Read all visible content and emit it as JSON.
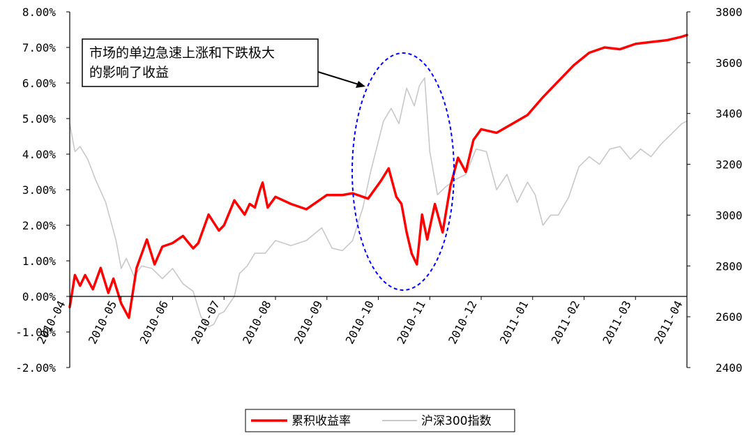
{
  "chart_data": {
    "type": "line",
    "title": "",
    "x_labels": [
      "2010-04",
      "2010-05",
      "2010-06",
      "2010-07",
      "2010-08",
      "2010-09",
      "2010-10",
      "2010-11",
      "2010-12",
      "2011-01",
      "2011-02",
      "2011-03",
      "2011-04"
    ],
    "left_axis": {
      "ticks": [
        "8.00%",
        "7.00%",
        "6.00%",
        "5.00%",
        "4.00%",
        "3.00%",
        "2.00%",
        "1.00%",
        "0.00%",
        "-1.00%",
        "-2.00%"
      ],
      "ylim": [
        -2,
        8
      ]
    },
    "right_axis": {
      "ticks": [
        "3800",
        "3600",
        "3400",
        "3200",
        "3000",
        "2800",
        "2600",
        "2400"
      ],
      "ylim": [
        2400,
        3800
      ]
    },
    "series": [
      {
        "name": "累积收益率",
        "axis": "left",
        "color": "#ff0000",
        "x": [
          0,
          0.1,
          0.2,
          0.3,
          0.45,
          0.6,
          0.75,
          0.85,
          1.0,
          1.15,
          1.3,
          1.5,
          1.65,
          1.8,
          2.0,
          2.2,
          2.4,
          2.5,
          2.7,
          2.9,
          3.0,
          3.2,
          3.4,
          3.5,
          3.6,
          3.7,
          3.75,
          3.85,
          4.0,
          4.3,
          4.6,
          5.0,
          5.3,
          5.5,
          5.8,
          6.05,
          6.2,
          6.35,
          6.45,
          6.55,
          6.65,
          6.75,
          6.85,
          6.95,
          7.1,
          7.25,
          7.4,
          7.55,
          7.7,
          7.85,
          8.0,
          8.3,
          8.6,
          8.9,
          9.2,
          9.5,
          9.8,
          10.1,
          10.4,
          10.7,
          11.0,
          11.3,
          11.6,
          11.9,
          12.0
        ],
        "values": [
          -0.3,
          0.6,
          0.3,
          0.6,
          0.2,
          0.8,
          0.1,
          0.5,
          -0.2,
          -0.6,
          0.8,
          1.6,
          0.9,
          1.4,
          1.5,
          1.7,
          1.35,
          1.5,
          2.3,
          1.85,
          2.0,
          2.7,
          2.3,
          2.6,
          2.5,
          3.0,
          3.2,
          2.5,
          2.8,
          2.6,
          2.45,
          2.85,
          2.85,
          2.9,
          2.75,
          3.25,
          3.6,
          2.8,
          2.6,
          1.8,
          1.2,
          0.9,
          2.3,
          1.6,
          2.6,
          1.8,
          3.1,
          3.9,
          3.5,
          4.4,
          4.7,
          4.6,
          4.85,
          5.1,
          5.6,
          6.05,
          6.5,
          6.85,
          7.0,
          6.95,
          7.1,
          7.15,
          7.2,
          7.3,
          7.35
        ]
      },
      {
        "name": "沪深300指数",
        "axis": "right",
        "color": "#c8c8c8",
        "x": [
          0,
          0.1,
          0.2,
          0.35,
          0.5,
          0.7,
          0.9,
          1.0,
          1.1,
          1.25,
          1.4,
          1.6,
          1.8,
          2.0,
          2.2,
          2.4,
          2.55,
          2.7,
          2.8,
          2.9,
          3.0,
          3.1,
          3.2,
          3.3,
          3.45,
          3.6,
          3.8,
          4.0,
          4.3,
          4.6,
          4.9,
          5.1,
          5.3,
          5.5,
          5.7,
          5.85,
          6.0,
          6.1,
          6.25,
          6.4,
          6.55,
          6.7,
          6.8,
          6.9,
          7.0,
          7.15,
          7.3,
          7.5,
          7.7,
          7.9,
          8.1,
          8.3,
          8.5,
          8.7,
          8.9,
          9.05,
          9.2,
          9.35,
          9.5,
          9.7,
          9.9,
          10.1,
          10.3,
          10.5,
          10.7,
          10.9,
          11.1,
          11.3,
          11.5,
          11.7,
          11.9,
          12.0
        ],
        "values": [
          3360,
          3250,
          3270,
          3220,
          3140,
          3050,
          2900,
          2790,
          2830,
          2760,
          2800,
          2790,
          2750,
          2790,
          2730,
          2700,
          2600,
          2560,
          2570,
          2610,
          2620,
          2650,
          2680,
          2770,
          2800,
          2850,
          2850,
          2900,
          2880,
          2900,
          2950,
          2870,
          2860,
          2900,
          3030,
          3170,
          3290,
          3370,
          3420,
          3360,
          3500,
          3430,
          3510,
          3540,
          3250,
          3080,
          3110,
          3140,
          3160,
          3260,
          3250,
          3100,
          3160,
          3050,
          3130,
          3080,
          2960,
          3000,
          3000,
          3070,
          3190,
          3230,
          3200,
          3260,
          3270,
          3220,
          3260,
          3230,
          3280,
          3320,
          3360,
          3370
        ]
      }
    ],
    "annotation": {
      "text_line1": "市场的单边急速上涨和下跌极大",
      "text_line2": "的影响了收益"
    },
    "legend": {
      "position": "bottom-center",
      "entries": [
        "累积收益率",
        "沪深300指数"
      ]
    }
  }
}
